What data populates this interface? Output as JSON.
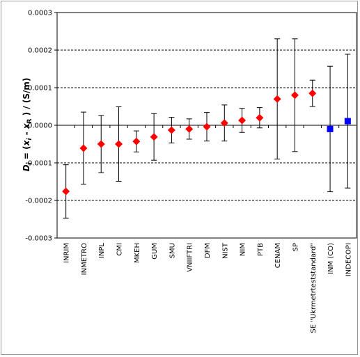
{
  "chart_data": {
    "type": "scatter",
    "title": "",
    "xlabel": "",
    "ylabel": {
      "d": "D",
      "i1": "i",
      "eq": " = (",
      "x1": "x",
      "i2": "i",
      "minus": " - ",
      "x2": "x",
      "r": "R",
      "tail": " ) / (S/m)"
    },
    "ylim": [
      -0.0003,
      0.0003
    ],
    "yticks": [
      "0.0003",
      "0.0002",
      "0.0001",
      "0.0000",
      "-0.0001",
      "-0.0002",
      "-0.0003"
    ],
    "ytick_values": [
      0.0003,
      0.0002,
      0.0001,
      0.0,
      -0.0001,
      -0.0002,
      -0.0003
    ],
    "grid": "horizontal dashed",
    "categories": [
      "INRIM",
      "INMETRO",
      "INPL",
      "CMI",
      "MKEH",
      "GUM",
      "SMU",
      "VNIIFTRI",
      "DFM",
      "NIST",
      "NIM",
      "PTB",
      "CENAM",
      "SP",
      "SE \"Ukrmetrteststandard\"",
      "INM (CO)",
      "INDECOPI"
    ],
    "values": [
      -0.000176,
      -6.1e-05,
      -5e-05,
      -5e-05,
      -4.3e-05,
      -3.1e-05,
      -1.3e-05,
      -1e-05,
      -4e-06,
      6e-06,
      1.3e-05,
      2e-05,
      7e-05,
      8e-05,
      8.5e-05,
      -1e-05,
      1.1e-05
    ],
    "uncertainty": [
      7.1e-05,
      9.6e-05,
      7.6e-05,
      9.9e-05,
      2.8e-05,
      6.2e-05,
      3.4e-05,
      2.7e-05,
      3.8e-05,
      4.8e-05,
      3.2e-05,
      2.7e-05,
      0.00016,
      0.00015,
      3.5e-05,
      0.000167,
      0.000178
    ],
    "marker": [
      "diamond",
      "diamond",
      "diamond",
      "diamond",
      "diamond",
      "diamond",
      "diamond",
      "diamond",
      "diamond",
      "diamond",
      "diamond",
      "diamond",
      "diamond",
      "diamond",
      "diamond",
      "square",
      "square"
    ],
    "colors": {
      "diamond": "#ff0000",
      "square": "#0000ff",
      "grid": "#000000",
      "errorbar": "#000000"
    }
  }
}
